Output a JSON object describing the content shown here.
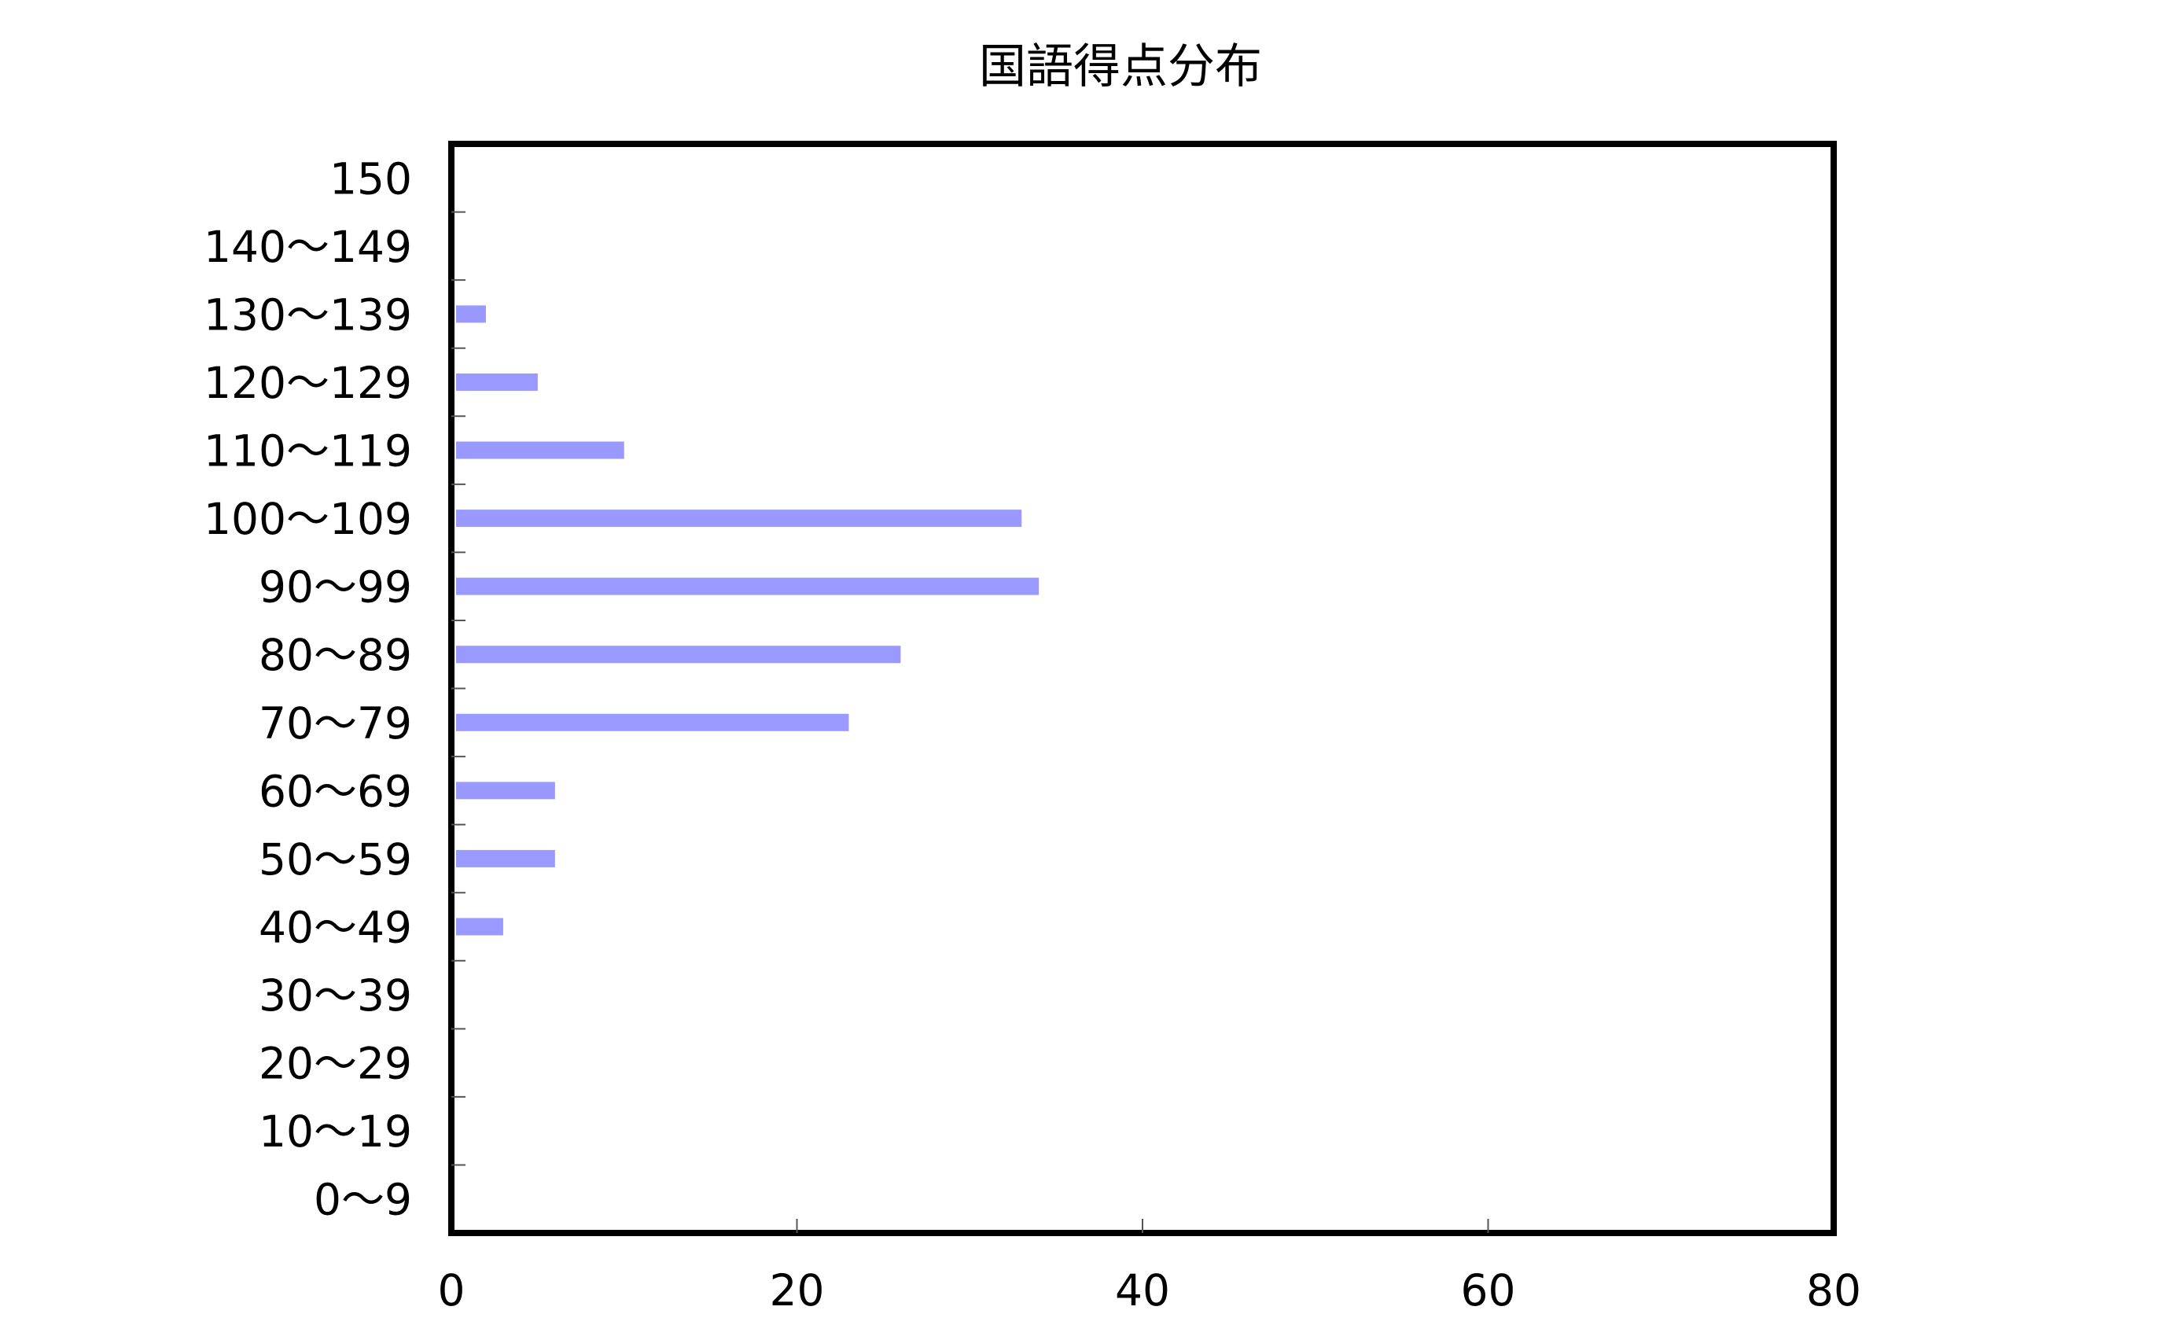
{
  "chart_data": {
    "type": "bar",
    "orientation": "horizontal",
    "title": "国語得点分布",
    "xlabel": "",
    "ylabel": "",
    "categories": [
      "0～9",
      "10～19",
      "20～29",
      "30～39",
      "40～49",
      "50～59",
      "60～69",
      "70～79",
      "80～89",
      "90～99",
      "100～109",
      "110～119",
      "120～129",
      "130～139",
      "140～149",
      "150"
    ],
    "values": [
      0,
      0,
      0,
      0,
      3,
      6,
      6,
      23,
      26,
      34,
      33,
      10,
      5,
      2,
      0,
      0
    ],
    "xlim": [
      0,
      80
    ],
    "x_ticks": [
      "0",
      "20",
      "40",
      "60",
      "80"
    ],
    "grid": false,
    "legend": "none",
    "bar_color": "#9999ff"
  }
}
